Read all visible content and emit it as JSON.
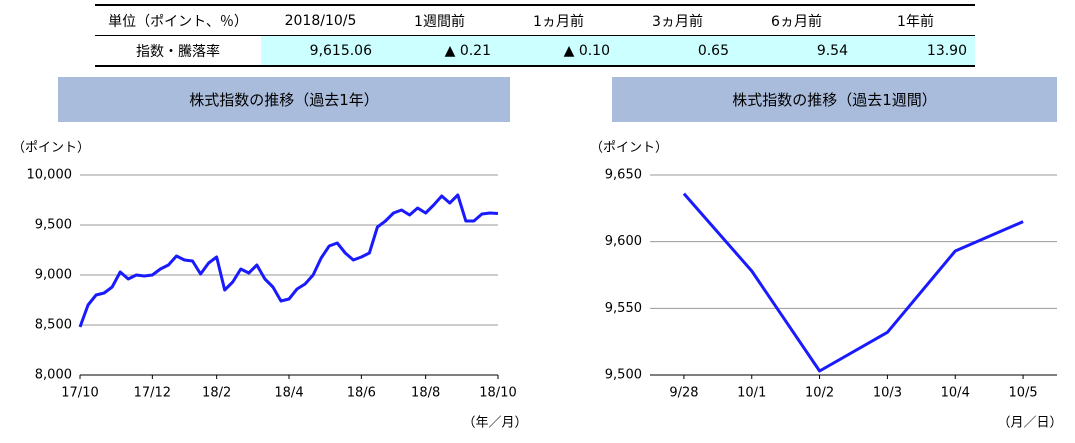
{
  "table": {
    "header": [
      "単位（ポイント、％）",
      "2018/10/5",
      "1週間前",
      "1ヵ月前",
      "3ヵ月前",
      "6ヵ月前",
      "1年前"
    ],
    "rows": [
      [
        "指数・騰落率",
        "9,615.06",
        "▲ 0.21",
        "▲ 0.10",
        "0.65",
        "9.54",
        "13.90"
      ]
    ]
  },
  "chart_data": [
    {
      "type": "line",
      "title": "株式指数の推移（過去1年）",
      "y_label": "（ポイント）",
      "x_label": "（年／月）",
      "categories": [
        "17/10",
        null,
        null,
        null,
        null,
        null,
        null,
        null,
        null,
        "17/12",
        null,
        null,
        null,
        null,
        null,
        null,
        null,
        "18/2",
        null,
        null,
        null,
        null,
        null,
        null,
        null,
        null,
        "18/4",
        null,
        null,
        null,
        null,
        null,
        null,
        null,
        null,
        "18/6",
        null,
        null,
        null,
        null,
        null,
        null,
        null,
        "18/8",
        null,
        null,
        null,
        null,
        null,
        null,
        null,
        null,
        "18/10"
      ],
      "values": [
        8480,
        8700,
        8800,
        8820,
        8880,
        9030,
        8960,
        9000,
        8990,
        9000,
        9060,
        9100,
        9190,
        9150,
        9140,
        9010,
        9120,
        9180,
        8850,
        8930,
        9060,
        9020,
        9100,
        8960,
        8880,
        8740,
        8760,
        8860,
        8910,
        9000,
        9170,
        9290,
        9320,
        9220,
        9150,
        9180,
        9220,
        9480,
        9540,
        9620,
        9650,
        9600,
        9670,
        9620,
        9700,
        9790,
        9720,
        9800,
        9540,
        9540,
        9610,
        9620,
        9615
      ],
      "color": "#1a1aff",
      "grid": true,
      "ylim": [
        8000,
        10000
      ],
      "yticks": [
        {
          "value": 8000,
          "label": "8,000"
        },
        {
          "value": 8500,
          "label": "8,500"
        },
        {
          "value": 9000,
          "label": "9,000"
        },
        {
          "value": 9500,
          "label": "9,500"
        },
        {
          "value": 10000,
          "label": "10,000"
        }
      ]
    },
    {
      "type": "line",
      "title": "株式指数の推移（過去1週間）",
      "y_label": "（ポイント）",
      "x_label": "（月／日）",
      "categories": [
        "9/28",
        "10/1",
        "10/2",
        "10/3",
        "10/4",
        "10/5"
      ],
      "values": [
        9636,
        9578,
        9503,
        9532,
        9593,
        9615
      ],
      "color": "#1a1aff",
      "grid": true,
      "ylim": [
        9500,
        9650
      ],
      "yticks": [
        {
          "value": 9500,
          "label": "9,500"
        },
        {
          "value": 9550,
          "label": "9,550"
        },
        {
          "value": 9600,
          "label": "9,600"
        },
        {
          "value": 9650,
          "label": "9,650"
        }
      ]
    }
  ]
}
